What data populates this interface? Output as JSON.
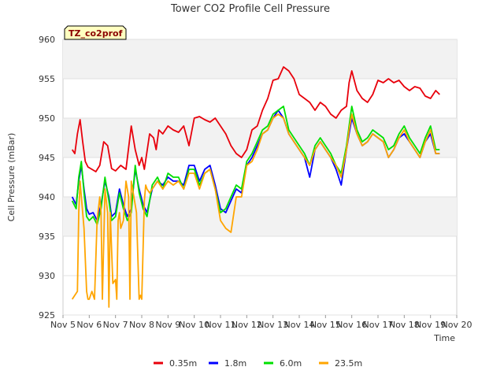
{
  "chart_data": {
    "type": "line",
    "title": "Tower CO2 Profile Cell Pressure",
    "xlabel": "Time",
    "ylabel": "Cell Pressure (mBar)",
    "site_label": "TZ_co2prof",
    "xlim": [
      5,
      20
    ],
    "ylim": [
      925,
      960
    ],
    "x_ticks": [
      5,
      6,
      7,
      8,
      9,
      10,
      11,
      12,
      13,
      14,
      15,
      16,
      17,
      18,
      19,
      20
    ],
    "x_tick_labels": [
      "Nov 5",
      "Nov 6",
      "Nov 7",
      "Nov 8",
      "Nov 9",
      "Nov 10",
      "Nov 11",
      "Nov 12",
      "Nov 13",
      "Nov 14",
      "Nov 15",
      "Nov 16",
      "Nov 17",
      "Nov 18",
      "Nov 19",
      "Nov 20"
    ],
    "y_ticks": [
      925,
      930,
      935,
      940,
      945,
      950,
      955,
      960
    ],
    "y_tick_labels": [
      "925",
      "930",
      "935",
      "940",
      "945",
      "950",
      "955",
      "960"
    ],
    "shaded_bands": [
      [
        935,
        940
      ],
      [
        945,
        950
      ],
      [
        955,
        960
      ]
    ],
    "legend_position": "bottom",
    "series": [
      {
        "name": "0.35m",
        "color": "#e8000b",
        "x": [
          5.35,
          5.45,
          5.55,
          5.65,
          5.75,
          5.85,
          5.95,
          6.1,
          6.25,
          6.4,
          6.55,
          6.7,
          6.85,
          7.0,
          7.2,
          7.4,
          7.6,
          7.75,
          7.9,
          8.0,
          8.1,
          8.3,
          8.45,
          8.55,
          8.65,
          8.8,
          9.0,
          9.2,
          9.4,
          9.6,
          9.8,
          10.0,
          10.2,
          10.4,
          10.6,
          10.8,
          11.0,
          11.2,
          11.4,
          11.6,
          11.8,
          12.0,
          12.2,
          12.4,
          12.6,
          12.8,
          13.0,
          13.2,
          13.4,
          13.6,
          13.8,
          14.0,
          14.2,
          14.4,
          14.6,
          14.8,
          15.0,
          15.2,
          15.4,
          15.6,
          15.8,
          15.9,
          16.0,
          16.2,
          16.4,
          16.6,
          16.8,
          17.0,
          17.2,
          17.4,
          17.6,
          17.8,
          18.0,
          18.2,
          18.4,
          18.6,
          18.8,
          19.0,
          19.2,
          19.35
        ],
        "y": [
          946.0,
          945.5,
          948.0,
          949.8,
          947.0,
          944.5,
          943.8,
          943.5,
          943.2,
          944.0,
          947.0,
          946.5,
          943.6,
          943.3,
          944.0,
          943.5,
          949.0,
          946.0,
          944.0,
          945.0,
          943.5,
          948.0,
          947.5,
          946.0,
          948.5,
          948.0,
          949.0,
          948.5,
          948.2,
          949.0,
          946.5,
          950.0,
          950.2,
          949.8,
          949.5,
          950.0,
          949.0,
          948.0,
          946.5,
          945.5,
          945.0,
          946.0,
          948.5,
          949.0,
          951.0,
          952.5,
          954.8,
          955.0,
          956.5,
          956.0,
          955.0,
          953.0,
          952.5,
          952.0,
          951.0,
          952.0,
          951.5,
          950.5,
          950.0,
          951.0,
          951.5,
          954.5,
          956.0,
          953.5,
          952.5,
          952.0,
          953.0,
          954.8,
          954.5,
          955.0,
          954.5,
          954.8,
          954.0,
          953.5,
          954.0,
          953.8,
          952.8,
          952.5,
          953.5,
          953.0
        ]
      },
      {
        "name": "1.8m",
        "color": "#0000ff",
        "x": [
          5.35,
          5.5,
          5.6,
          5.7,
          5.8,
          5.9,
          6.0,
          6.15,
          6.3,
          6.45,
          6.6,
          6.75,
          6.85,
          7.0,
          7.15,
          7.3,
          7.45,
          7.6,
          7.75,
          7.9,
          8.05,
          8.2,
          8.4,
          8.6,
          8.8,
          9.0,
          9.2,
          9.4,
          9.6,
          9.8,
          10.0,
          10.2,
          10.4,
          10.6,
          10.8,
          11.0,
          11.2,
          11.4,
          11.6,
          11.8,
          12.0,
          12.2,
          12.4,
          12.6,
          12.8,
          13.0,
          13.2,
          13.4,
          13.6,
          13.8,
          14.0,
          14.2,
          14.4,
          14.6,
          14.8,
          15.0,
          15.2,
          15.4,
          15.6,
          15.8,
          15.9,
          16.0,
          16.2,
          16.4,
          16.6,
          16.8,
          17.0,
          17.2,
          17.4,
          17.6,
          17.8,
          18.0,
          18.2,
          18.4,
          18.6,
          18.8,
          19.0,
          19.2,
          19.35
        ],
        "y": [
          940.0,
          939.0,
          942.0,
          944.0,
          941.0,
          938.5,
          937.8,
          938.0,
          937.0,
          939.0,
          942.0,
          940.0,
          937.5,
          938.0,
          941.0,
          939.0,
          937.5,
          938.5,
          943.5,
          941.0,
          939.0,
          938.0,
          941.0,
          942.0,
          941.5,
          942.5,
          942.0,
          942.0,
          941.5,
          944.0,
          944.0,
          942.0,
          943.5,
          944.0,
          941.5,
          938.5,
          938.0,
          939.5,
          941.0,
          940.5,
          944.0,
          945.0,
          946.5,
          948.0,
          948.5,
          950.0,
          951.0,
          950.0,
          948.0,
          947.0,
          946.0,
          945.0,
          942.5,
          946.0,
          947.0,
          946.0,
          945.0,
          943.5,
          941.5,
          946.0,
          948.0,
          950.0,
          948.0,
          946.5,
          947.0,
          948.0,
          947.5,
          947.0,
          945.0,
          946.0,
          947.5,
          948.0,
          947.0,
          946.0,
          945.0,
          947.0,
          948.0,
          945.5,
          945.5
        ]
      },
      {
        "name": "6.0m",
        "color": "#00e000",
        "x": [
          5.35,
          5.5,
          5.6,
          5.7,
          5.8,
          5.9,
          6.0,
          6.15,
          6.3,
          6.45,
          6.6,
          6.75,
          6.85,
          7.0,
          7.15,
          7.3,
          7.45,
          7.6,
          7.75,
          7.9,
          8.05,
          8.2,
          8.4,
          8.6,
          8.8,
          9.0,
          9.2,
          9.4,
          9.6,
          9.8,
          10.0,
          10.2,
          10.4,
          10.6,
          10.8,
          11.0,
          11.2,
          11.4,
          11.6,
          11.8,
          12.0,
          12.2,
          12.4,
          12.6,
          12.8,
          13.0,
          13.2,
          13.4,
          13.6,
          13.8,
          14.0,
          14.2,
          14.4,
          14.6,
          14.8,
          15.0,
          15.2,
          15.4,
          15.6,
          15.8,
          15.9,
          16.0,
          16.2,
          16.4,
          16.6,
          16.8,
          17.0,
          17.2,
          17.4,
          17.6,
          17.8,
          18.0,
          18.2,
          18.4,
          18.6,
          18.8,
          19.0,
          19.2,
          19.35
        ],
        "y": [
          939.5,
          938.5,
          942.5,
          944.5,
          940.5,
          937.5,
          937.0,
          937.5,
          936.5,
          938.5,
          942.5,
          939.5,
          937.0,
          937.5,
          940.5,
          938.5,
          937.0,
          938.0,
          944.0,
          940.5,
          938.5,
          937.5,
          941.5,
          942.5,
          941.0,
          943.0,
          942.5,
          942.5,
          941.0,
          943.5,
          943.5,
          941.5,
          943.0,
          943.5,
          941.0,
          938.0,
          938.5,
          940.0,
          941.5,
          941.0,
          944.5,
          945.5,
          947.0,
          948.5,
          949.0,
          950.5,
          951.0,
          951.5,
          948.5,
          947.5,
          946.5,
          945.5,
          944.0,
          946.5,
          947.5,
          946.5,
          945.5,
          944.0,
          943.0,
          946.5,
          949.0,
          951.5,
          948.5,
          947.0,
          947.5,
          948.5,
          948.0,
          947.5,
          946.0,
          946.5,
          948.0,
          949.0,
          947.5,
          946.5,
          945.5,
          947.5,
          949.0,
          946.0,
          946.0
        ]
      },
      {
        "name": "23.5m",
        "color": "#ffa500",
        "x": [
          5.35,
          5.45,
          5.55,
          5.6,
          5.65,
          5.7,
          5.8,
          5.9,
          5.95,
          6.0,
          6.1,
          6.2,
          6.3,
          6.4,
          6.45,
          6.5,
          6.6,
          6.7,
          6.75,
          6.8,
          6.9,
          7.0,
          7.05,
          7.1,
          7.15,
          7.2,
          7.3,
          7.4,
          7.5,
          7.55,
          7.6,
          7.7,
          7.8,
          7.9,
          7.95,
          8.0,
          8.1,
          8.15,
          8.2,
          8.3,
          8.4,
          8.6,
          8.8,
          9.0,
          9.2,
          9.4,
          9.6,
          9.8,
          10.0,
          10.2,
          10.4,
          10.6,
          10.8,
          11.0,
          11.2,
          11.4,
          11.6,
          11.8,
          12.0,
          12.2,
          12.4,
          12.6,
          12.8,
          13.0,
          13.2,
          13.4,
          13.6,
          13.8,
          14.0,
          14.2,
          14.4,
          14.6,
          14.8,
          15.0,
          15.2,
          15.4,
          15.6,
          15.8,
          15.9,
          16.0,
          16.2,
          16.4,
          16.6,
          16.8,
          17.0,
          17.2,
          17.4,
          17.6,
          17.8,
          18.0,
          18.2,
          18.4,
          18.6,
          18.8,
          19.0,
          19.2,
          19.35
        ],
        "y": [
          927.0,
          927.5,
          928.0,
          938.0,
          942.0,
          940.0,
          936.0,
          928.0,
          927.0,
          927.0,
          928.0,
          927.0,
          937.0,
          940.0,
          938.0,
          927.0,
          941.0,
          938.0,
          926.0,
          938.0,
          929.0,
          929.5,
          927.0,
          937.0,
          938.0,
          936.0,
          937.0,
          942.0,
          940.0,
          927.0,
          942.0,
          940.0,
          938.0,
          927.0,
          927.5,
          927.0,
          939.5,
          941.5,
          941.0,
          940.5,
          941.0,
          942.0,
          941.0,
          942.0,
          941.5,
          942.0,
          941.0,
          943.0,
          943.0,
          941.0,
          943.0,
          943.5,
          941.0,
          937.0,
          936.0,
          935.5,
          940.0,
          940.0,
          944.0,
          944.5,
          946.0,
          948.0,
          948.5,
          950.0,
          950.5,
          950.0,
          948.0,
          947.0,
          946.0,
          945.0,
          944.0,
          946.0,
          947.0,
          946.0,
          945.0,
          944.0,
          942.5,
          946.0,
          948.5,
          950.5,
          948.0,
          946.5,
          947.0,
          948.0,
          947.5,
          947.0,
          945.0,
          946.0,
          947.5,
          948.5,
          947.0,
          946.0,
          945.0,
          947.0,
          948.5,
          945.5,
          945.5
        ]
      }
    ]
  }
}
